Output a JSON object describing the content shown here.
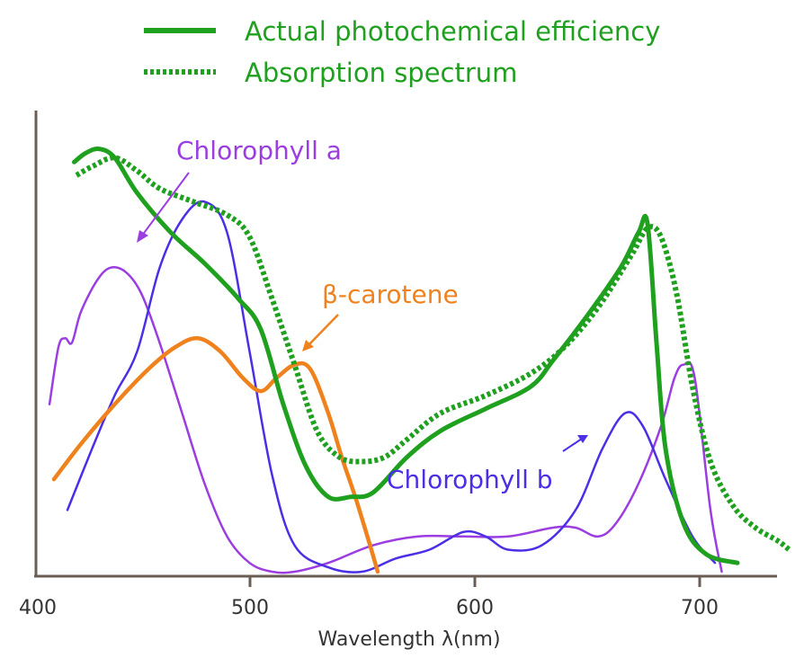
{
  "chart_data": {
    "type": "line",
    "title": "",
    "xlabel": "Wavelength λ(nm)",
    "ylabel": "",
    "xlim": [
      400,
      735
    ],
    "ylim": [
      0,
      1
    ],
    "x_ticks": [
      "400",
      "500",
      "600",
      "700"
    ],
    "grid": false,
    "legend": {
      "placement": "top",
      "entries": [
        {
          "label": "Actual photochemical efficiency",
          "style": "solid",
          "color": "#1fa01f"
        },
        {
          "label": "Absorption spectrum",
          "style": "dotted",
          "color": "#1fa01f"
        }
      ]
    },
    "series": [
      {
        "name": "Actual photochemical efficiency",
        "color": "#1fa01f",
        "style": "solid",
        "points": [
          [
            417,
            0.93
          ],
          [
            422,
            0.95
          ],
          [
            428,
            0.96
          ],
          [
            435,
            0.94
          ],
          [
            445,
            0.86
          ],
          [
            460,
            0.77
          ],
          [
            475,
            0.7
          ],
          [
            490,
            0.62
          ],
          [
            500,
            0.55
          ],
          [
            510,
            0.38
          ],
          [
            520,
            0.24
          ],
          [
            530,
            0.17
          ],
          [
            540,
            0.17
          ],
          [
            550,
            0.18
          ],
          [
            565,
            0.26
          ],
          [
            580,
            0.32
          ],
          [
            600,
            0.37
          ],
          [
            620,
            0.42
          ],
          [
            630,
            0.48
          ],
          [
            645,
            0.58
          ],
          [
            660,
            0.69
          ],
          [
            668,
            0.77
          ],
          [
            672,
            0.79
          ],
          [
            676,
            0.52
          ],
          [
            680,
            0.28
          ],
          [
            688,
            0.11
          ],
          [
            698,
            0.04
          ],
          [
            712,
            0.02
          ]
        ]
      },
      {
        "name": "Absorption spectrum",
        "color": "#1fa01f",
        "style": "dotted",
        "points": [
          [
            418,
            0.9
          ],
          [
            425,
            0.92
          ],
          [
            435,
            0.94
          ],
          [
            445,
            0.91
          ],
          [
            455,
            0.87
          ],
          [
            470,
            0.84
          ],
          [
            485,
            0.81
          ],
          [
            495,
            0.76
          ],
          [
            505,
            0.62
          ],
          [
            515,
            0.47
          ],
          [
            525,
            0.32
          ],
          [
            535,
            0.26
          ],
          [
            545,
            0.25
          ],
          [
            555,
            0.26
          ],
          [
            565,
            0.3
          ],
          [
            580,
            0.36
          ],
          [
            600,
            0.4
          ],
          [
            620,
            0.45
          ],
          [
            635,
            0.51
          ],
          [
            650,
            0.6
          ],
          [
            665,
            0.72
          ],
          [
            672,
            0.78
          ],
          [
            678,
            0.76
          ],
          [
            685,
            0.63
          ],
          [
            692,
            0.42
          ],
          [
            700,
            0.25
          ],
          [
            710,
            0.15
          ],
          [
            720,
            0.1
          ],
          [
            730,
            0.07
          ],
          [
            735,
            0.05
          ]
        ]
      },
      {
        "name": "Chlorophyll a",
        "color": "#9b3de0",
        "style": "solid",
        "points": [
          [
            406,
            0.38
          ],
          [
            410,
            0.51
          ],
          [
            413,
            0.53
          ],
          [
            416,
            0.52
          ],
          [
            420,
            0.59
          ],
          [
            427,
            0.66
          ],
          [
            433,
            0.69
          ],
          [
            440,
            0.68
          ],
          [
            447,
            0.63
          ],
          [
            455,
            0.52
          ],
          [
            465,
            0.36
          ],
          [
            475,
            0.2
          ],
          [
            485,
            0.08
          ],
          [
            495,
            0.02
          ],
          [
            505,
            0.0
          ],
          [
            515,
            0.0
          ],
          [
            530,
            0.02
          ],
          [
            550,
            0.06
          ],
          [
            570,
            0.08
          ],
          [
            590,
            0.08
          ],
          [
            610,
            0.08
          ],
          [
            630,
            0.1
          ],
          [
            640,
            0.1
          ],
          [
            650,
            0.08
          ],
          [
            658,
            0.11
          ],
          [
            668,
            0.2
          ],
          [
            678,
            0.33
          ],
          [
            684,
            0.44
          ],
          [
            688,
            0.47
          ],
          [
            693,
            0.44
          ],
          [
            700,
            0.14
          ],
          [
            705,
            0.0
          ]
        ]
      },
      {
        "name": "Chlorophyll b",
        "color": "#4b2fe6",
        "style": "solid",
        "points": [
          [
            414,
            0.14
          ],
          [
            425,
            0.28
          ],
          [
            435,
            0.4
          ],
          [
            445,
            0.5
          ],
          [
            455,
            0.69
          ],
          [
            465,
            0.8
          ],
          [
            475,
            0.84
          ],
          [
            485,
            0.77
          ],
          [
            495,
            0.5
          ],
          [
            505,
            0.22
          ],
          [
            515,
            0.06
          ],
          [
            530,
            0.01
          ],
          [
            545,
            0.0
          ],
          [
            560,
            0.03
          ],
          [
            575,
            0.05
          ],
          [
            590,
            0.09
          ],
          [
            600,
            0.08
          ],
          [
            610,
            0.05
          ],
          [
            625,
            0.06
          ],
          [
            640,
            0.14
          ],
          [
            652,
            0.28
          ],
          [
            662,
            0.36
          ],
          [
            670,
            0.33
          ],
          [
            680,
            0.21
          ],
          [
            692,
            0.08
          ],
          [
            702,
            0.02
          ]
        ]
      },
      {
        "name": "β-carotene",
        "color": "#f0821e",
        "style": "solid",
        "points": [
          [
            408,
            0.21
          ],
          [
            420,
            0.29
          ],
          [
            435,
            0.38
          ],
          [
            450,
            0.46
          ],
          [
            462,
            0.51
          ],
          [
            472,
            0.53
          ],
          [
            482,
            0.5
          ],
          [
            492,
            0.44
          ],
          [
            500,
            0.41
          ],
          [
            507,
            0.44
          ],
          [
            515,
            0.47
          ],
          [
            522,
            0.46
          ],
          [
            530,
            0.36
          ],
          [
            536,
            0.26
          ],
          [
            542,
            0.17
          ],
          [
            548,
            0.07
          ],
          [
            552,
            0.0
          ]
        ]
      }
    ],
    "annotations": [
      "Chlorophyll a",
      "β-carotene",
      "Chlorophyll b"
    ]
  }
}
